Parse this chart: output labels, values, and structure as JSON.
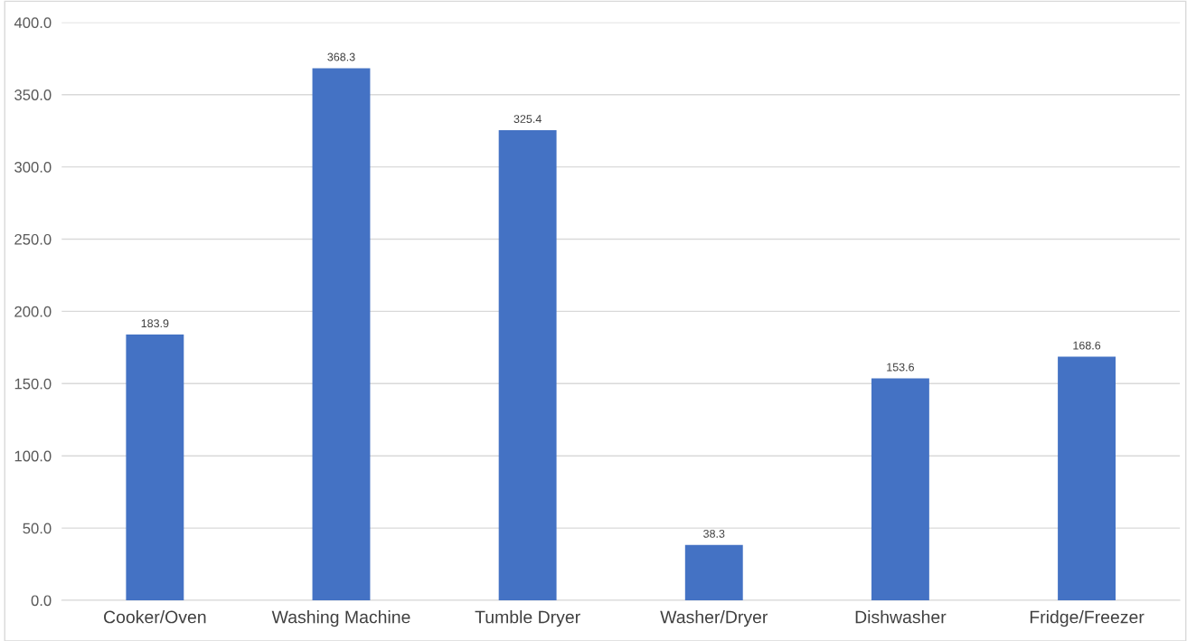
{
  "chart_data": {
    "type": "bar",
    "categories": [
      "Cooker/Oven",
      "Washing Machine",
      "Tumble Dryer",
      "Washer/Dryer",
      "Dishwasher",
      "Fridge/Freezer"
    ],
    "values": [
      183.9,
      368.3,
      325.4,
      38.3,
      153.6,
      168.6
    ],
    "color": "#4472c4",
    "ylim": [
      0,
      400
    ],
    "yticks": [
      {
        "value": 0,
        "label": "0.0"
      },
      {
        "value": 50,
        "label": "50.0"
      },
      {
        "value": 100,
        "label": "100.0"
      },
      {
        "value": 150,
        "label": "150.0"
      },
      {
        "value": 200,
        "label": "200.0"
      },
      {
        "value": 250,
        "label": "250.0"
      },
      {
        "value": 300,
        "label": "300.0"
      },
      {
        "value": 350,
        "label": "350.0"
      },
      {
        "value": 400,
        "label": "400.0"
      }
    ],
    "grid": "y",
    "data_labels": true
  }
}
